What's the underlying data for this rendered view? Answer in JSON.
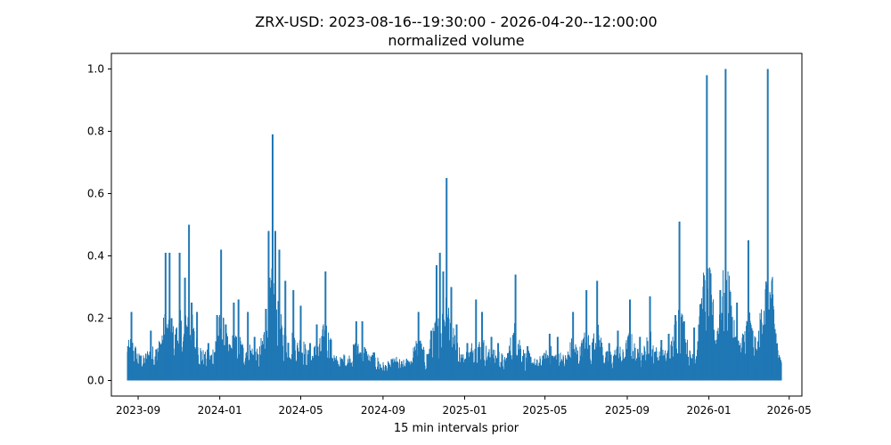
{
  "chart_data": {
    "type": "line",
    "title": "ZRX-USD: 2023-08-16--19:30:00 - 2026-04-20--12:00:00",
    "subtitle": "normalized volume",
    "xlabel": "15 min intervals prior",
    "ylabel": "",
    "xlim": [
      "2023-07-23",
      "2026-05-20"
    ],
    "ylim": [
      -0.05,
      1.05
    ],
    "x_ticks": [
      "2023-09",
      "2024-01",
      "2024-05",
      "2024-09",
      "2025-01",
      "2025-05",
      "2025-09",
      "2026-01",
      "2026-05"
    ],
    "y_ticks": [
      "0.0",
      "0.2",
      "0.4",
      "0.6",
      "0.8",
      "1.0"
    ],
    "grid": false,
    "legend": "none",
    "series_color": "#1f77b4",
    "x_start": "2023-08-16",
    "x_end": "2026-04-20",
    "baseline_level": 0.04,
    "series": [
      {
        "values": [
          [
            "2023-08-17",
            0.11
          ],
          [
            "2023-08-22",
            0.22
          ],
          [
            "2023-09-05",
            0.08
          ],
          [
            "2023-09-20",
            0.16
          ],
          [
            "2023-09-28",
            0.1
          ],
          [
            "2023-10-12",
            0.41
          ],
          [
            "2023-10-18",
            0.41
          ],
          [
            "2023-10-21",
            0.2
          ],
          [
            "2023-11-02",
            0.41
          ],
          [
            "2023-11-10",
            0.33
          ],
          [
            "2023-11-16",
            0.5
          ],
          [
            "2023-11-20",
            0.25
          ],
          [
            "2023-11-28",
            0.22
          ],
          [
            "2023-12-15",
            0.12
          ],
          [
            "2023-12-28",
            0.21
          ],
          [
            "2024-01-03",
            0.42
          ],
          [
            "2024-01-10",
            0.18
          ],
          [
            "2024-01-22",
            0.25
          ],
          [
            "2024-01-29",
            0.26
          ],
          [
            "2024-02-12",
            0.22
          ],
          [
            "2024-02-22",
            0.14
          ],
          [
            "2024-03-10",
            0.23
          ],
          [
            "2024-03-14",
            0.48
          ],
          [
            "2024-03-20",
            0.79
          ],
          [
            "2024-03-24",
            0.48
          ],
          [
            "2024-03-30",
            0.42
          ],
          [
            "2024-04-08",
            0.32
          ],
          [
            "2024-04-20",
            0.29
          ],
          [
            "2024-05-01",
            0.24
          ],
          [
            "2024-05-15",
            0.12
          ],
          [
            "2024-05-25",
            0.18
          ],
          [
            "2024-06-07",
            0.35
          ],
          [
            "2024-06-15",
            0.12
          ],
          [
            "2024-07-05",
            0.08
          ],
          [
            "2024-07-23",
            0.19
          ],
          [
            "2024-08-01",
            0.19
          ],
          [
            "2024-08-18",
            0.09
          ],
          [
            "2024-09-20",
            0.06
          ],
          [
            "2024-10-10",
            0.06
          ],
          [
            "2024-10-24",
            0.22
          ],
          [
            "2024-11-12",
            0.16
          ],
          [
            "2024-11-20",
            0.37
          ],
          [
            "2024-11-25",
            0.41
          ],
          [
            "2024-11-30",
            0.35
          ],
          [
            "2024-12-05",
            0.65
          ],
          [
            "2024-12-12",
            0.3
          ],
          [
            "2024-12-20",
            0.18
          ],
          [
            "2025-01-05",
            0.12
          ],
          [
            "2025-01-18",
            0.26
          ],
          [
            "2025-01-27",
            0.22
          ],
          [
            "2025-02-10",
            0.14
          ],
          [
            "2025-02-20",
            0.12
          ],
          [
            "2025-03-18",
            0.34
          ],
          [
            "2025-04-05",
            0.11
          ],
          [
            "2025-04-28",
            0.08
          ],
          [
            "2025-05-08",
            0.15
          ],
          [
            "2025-05-20",
            0.14
          ],
          [
            "2025-06-12",
            0.22
          ],
          [
            "2025-06-25",
            0.12
          ],
          [
            "2025-07-02",
            0.29
          ],
          [
            "2025-07-18",
            0.32
          ],
          [
            "2025-08-05",
            0.12
          ],
          [
            "2025-08-18",
            0.16
          ],
          [
            "2025-09-05",
            0.26
          ],
          [
            "2025-09-20",
            0.14
          ],
          [
            "2025-10-05",
            0.27
          ],
          [
            "2025-10-22",
            0.13
          ],
          [
            "2025-11-02",
            0.15
          ],
          [
            "2025-11-12",
            0.21
          ],
          [
            "2025-11-18",
            0.51
          ],
          [
            "2025-11-25",
            0.19
          ],
          [
            "2025-12-10",
            0.17
          ],
          [
            "2025-12-22",
            0.23
          ],
          [
            "2025-12-29",
            0.98
          ],
          [
            "2026-01-06",
            0.21
          ],
          [
            "2026-01-18",
            0.29
          ],
          [
            "2026-01-26",
            1.0
          ],
          [
            "2026-02-03",
            0.24
          ],
          [
            "2026-02-12",
            0.25
          ],
          [
            "2026-02-22",
            0.09
          ],
          [
            "2026-03-01",
            0.45
          ],
          [
            "2026-03-12",
            0.06
          ],
          [
            "2026-03-25",
            0.18
          ],
          [
            "2026-03-30",
            1.0
          ],
          [
            "2026-04-06",
            0.16
          ],
          [
            "2026-04-14",
            0.05
          ]
        ]
      }
    ]
  }
}
